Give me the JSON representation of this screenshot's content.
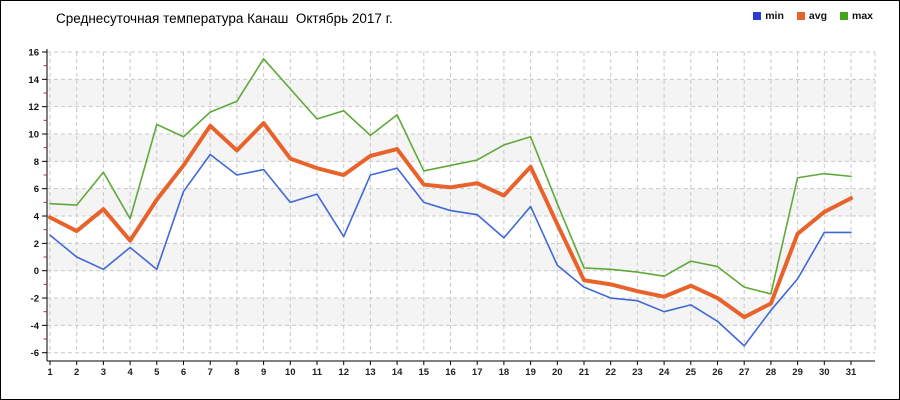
{
  "title": "Среднесуточная температура Канаш  Октябрь 2017 г.",
  "legend": {
    "position": "top-right",
    "items": [
      {
        "label": "min",
        "color": "#2b3cd6"
      },
      {
        "label": "avg",
        "color": "#e8622b"
      },
      {
        "label": "max",
        "color": "#44a51c"
      }
    ]
  },
  "chart_data": {
    "type": "line",
    "title": "Среднесуточная температура Канаш  Октябрь 2017 г.",
    "xlabel": "",
    "ylabel": "",
    "x": [
      1,
      2,
      3,
      4,
      5,
      6,
      7,
      8,
      9,
      10,
      11,
      12,
      13,
      14,
      15,
      16,
      17,
      18,
      19,
      20,
      21,
      22,
      23,
      24,
      25,
      26,
      27,
      28,
      29,
      30,
      31
    ],
    "ylim": [
      -6,
      16
    ],
    "yticks": [
      16,
      14,
      12,
      10,
      8,
      6,
      4,
      2,
      0,
      -2,
      -4,
      -6
    ],
    "grid": "dashed",
    "legend_position": "top-right",
    "series": [
      {
        "name": "min",
        "color": "#4169d6",
        "values": [
          2.6,
          1.0,
          0.1,
          1.7,
          0.1,
          5.8,
          8.5,
          7.0,
          7.4,
          5.0,
          5.6,
          2.5,
          7.0,
          7.5,
          5.0,
          4.4,
          4.1,
          2.4,
          4.7,
          0.4,
          -1.2,
          -2.0,
          -2.2,
          -3.0,
          -2.5,
          -3.7,
          -5.5,
          -2.9,
          -0.6,
          2.8,
          2.8
        ]
      },
      {
        "name": "avg",
        "color": "#e8622b",
        "values": [
          3.9,
          2.9,
          4.5,
          2.2,
          5.2,
          7.7,
          10.6,
          8.8,
          10.8,
          8.2,
          7.5,
          7.0,
          8.4,
          8.9,
          6.3,
          6.1,
          6.4,
          5.5,
          7.6,
          3.4,
          -0.7,
          -1.0,
          -1.5,
          -1.9,
          -1.1,
          -2.0,
          -3.4,
          -2.4,
          2.7,
          4.3,
          5.3
        ]
      },
      {
        "name": "max",
        "color": "#5fa93a",
        "values": [
          4.9,
          4.8,
          7.2,
          3.8,
          10.7,
          9.8,
          11.6,
          12.4,
          15.5,
          13.3,
          11.1,
          11.7,
          9.9,
          11.4,
          7.3,
          7.7,
          8.1,
          9.2,
          9.8,
          4.9,
          0.2,
          0.1,
          -0.1,
          -0.4,
          0.7,
          0.3,
          -1.2,
          -1.7,
          6.8,
          7.1,
          6.9
        ]
      }
    ],
    "style": {
      "band_color": "#f4f4f4",
      "grid_color": "#c9c9c9",
      "axis_color": "#000000",
      "minor_tick_color": "#b03030",
      "avg_line_width": 4,
      "minmax_line_width": 1.6
    }
  }
}
